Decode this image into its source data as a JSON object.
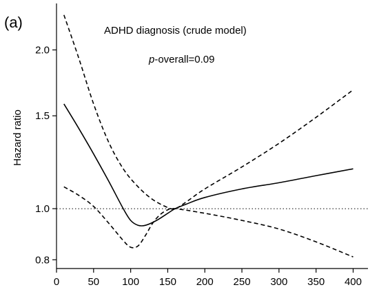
{
  "chart_data": {
    "type": "line",
    "panel_label": "(a)",
    "title": "ADHD diagnosis (crude model)",
    "annotation": {
      "prefix": "p",
      "text": "-overall=0.09"
    },
    "xlabel": "",
    "ylabel": "Hazard ratio",
    "xlim": [
      0,
      420
    ],
    "ylim": [
      0.77,
      2.45
    ],
    "y_scale": "log",
    "x_ticks": [
      0,
      50,
      100,
      150,
      200,
      250,
      300,
      350,
      400
    ],
    "y_ticks": [
      0.8,
      1.0,
      1.5,
      2.0
    ],
    "y_tick_labels": [
      "0.8",
      "1.0",
      "1.5",
      "2.0"
    ],
    "reference_line": {
      "y": 1.0,
      "style": "dotted"
    },
    "grid": false,
    "series": [
      {
        "style": "solid",
        "x": [
          10,
          30,
          50,
          70,
          90,
          100,
          110,
          120,
          135,
          150,
          160,
          175,
          200,
          250,
          300,
          350,
          400
        ],
        "y": [
          1.58,
          1.42,
          1.27,
          1.13,
          1.0,
          0.95,
          0.93,
          0.93,
          0.95,
          0.98,
          1.0,
          1.02,
          1.05,
          1.09,
          1.12,
          1.155,
          1.19
        ]
      },
      {
        "style": "dashed",
        "x": [
          10,
          30,
          50,
          70,
          90,
          110,
          130,
          150,
          160,
          175,
          200,
          250,
          300,
          350,
          400
        ],
        "y": [
          2.33,
          1.93,
          1.58,
          1.34,
          1.19,
          1.1,
          1.04,
          1.005,
          1.0,
          1.03,
          1.09,
          1.2,
          1.33,
          1.49,
          1.68
        ]
      },
      {
        "style": "dashed",
        "x": [
          10,
          30,
          50,
          70,
          90,
          100,
          110,
          120,
          130,
          140,
          150,
          160,
          200,
          250,
          300,
          350,
          400
        ],
        "y": [
          1.1,
          1.06,
          1.01,
          0.94,
          0.87,
          0.845,
          0.85,
          0.89,
          0.94,
          0.975,
          0.995,
          1.0,
          0.98,
          0.95,
          0.915,
          0.865,
          0.81
        ]
      }
    ]
  }
}
